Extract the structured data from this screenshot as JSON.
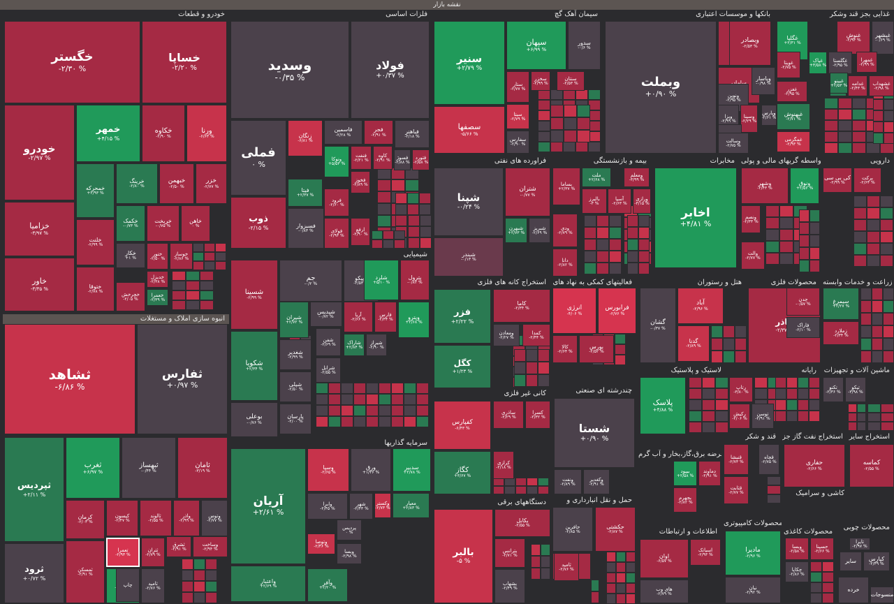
{
  "header": {
    "title": "نقشه بازار"
  },
  "colors": {
    "bg": "#2b2b2e",
    "neutral": "#4b414b",
    "red": "#c7334b",
    "dark_red": "#7e2a40",
    "green": "#209a5a"
  },
  "sectors": [
    {
      "name": "خودرو و قطعات"
    },
    {
      "name": "فلزات اساسی"
    },
    {
      "name": "سیمان آهک گچ"
    },
    {
      "name": "بانکها و موسسات اعتباری"
    },
    {
      "name": "غذایی بجز قند وشکر"
    },
    {
      "name": "انبوه سازی املاک و مستغلات"
    },
    {
      "name": "شیمیایی"
    },
    {
      "name": "فراورده های نفتی"
    },
    {
      "name": "بیمه و بازنشستگی"
    },
    {
      "name": "مخابرات"
    },
    {
      "name": "واسطه گریهای مالی و پولی"
    },
    {
      "name": "دارویی"
    },
    {
      "name": "استخراج کانه های فلزی"
    },
    {
      "name": "فعالیتهای کمکی به نهاد های"
    },
    {
      "name": "هتل و رستوران"
    },
    {
      "name": "محصولات فلزی"
    },
    {
      "name": "زراعت و خدمات وابسته"
    },
    {
      "name": "سرمایه گذاریها"
    },
    {
      "name": "کانی غیر فلزی"
    },
    {
      "name": "چندرشته ای صنعتی"
    },
    {
      "name": "لاستیک و پلاستیک"
    },
    {
      "name": "رایانه"
    },
    {
      "name": "ماشین آلات و تجهیزات"
    },
    {
      "name": "دستگاههای برقی"
    },
    {
      "name": "عرضه برق،گاز،بخار و آب گرم"
    },
    {
      "name": "قند و شکر"
    },
    {
      "name": "استخراج نفت گاز جز"
    },
    {
      "name": "استخراج سایر"
    },
    {
      "name": "حمل و نقل انبارداری و"
    },
    {
      "name": "اطلاعات و ارتباطات"
    },
    {
      "name": "محصولات کامپیوتری"
    },
    {
      "name": "کاشی و سرامیک"
    },
    {
      "name": "محصولات کاغذی"
    },
    {
      "name": "محصولات چوبی"
    }
  ],
  "tiles": [
    {
      "name": "خگستر",
      "change": "-۲/۳۰ %"
    },
    {
      "name": "خساپا",
      "change": "-۲/۲۰ %"
    },
    {
      "name": "خودرو",
      "change": "-۲/۹۷ %"
    },
    {
      "name": "خمهر",
      "change": "+۴/۱۵ %"
    },
    {
      "name": "خکاوه",
      "change": "-۲/۹۰ %"
    },
    {
      "name": "ورنا",
      "change": "-۶/۶۳ %"
    },
    {
      "name": "خزامیا",
      "change": "-۳/۹۷ %"
    },
    {
      "name": "خاور",
      "change": "-۳/۳۵ %"
    },
    {
      "name": "خمحرکه",
      "change": "+۲/۹۳ %"
    },
    {
      "name": "خبهمن",
      "change": "-۲/۵۰ %"
    },
    {
      "name": "خزر",
      "change": "-۲/۷۷ %"
    },
    {
      "name": "خرینگ",
      "change": "-۲/۸۰ %"
    },
    {
      "name": "خلنت",
      "change": "-۲/۹۹ %"
    },
    {
      "name": "خکمک",
      "change": "-۰/۷۳ %"
    },
    {
      "name": "خریخت",
      "change": "-۰/۷۵ %"
    },
    {
      "name": "خاهن",
      "change": "۰ %"
    },
    {
      "name": "خوساز",
      "change": "-۲/۸۶ %"
    },
    {
      "name": "ختور",
      "change": "-۲/۵۰ %"
    },
    {
      "name": "خکار",
      "change": "+۱ %"
    },
    {
      "name": "ختوقا",
      "change": "-۲/۷۸ %"
    },
    {
      "name": "خچرخش",
      "change": "-۲/۰۵ %"
    },
    {
      "name": "خدیزل",
      "change": "-۲/۳۸ %"
    },
    {
      "name": "خعمرا",
      "change": "-۲/۳۹ %"
    },
    {
      "name": "وسدید",
      "change": "-۰/۳۵ %"
    },
    {
      "name": "فولاد",
      "change": "+۰/۳۷ %"
    },
    {
      "name": "فملی",
      "change": "۰ %"
    },
    {
      "name": "ذوب",
      "change": "-۲/۱۵ %"
    },
    {
      "name": "زنگان",
      "change": "-۶/۸۱ %"
    },
    {
      "name": "فاسمین",
      "change": "-۲/۲۸ %"
    },
    {
      "name": "فجر",
      "change": "-۲/۹۱ %"
    },
    {
      "name": "فباهنر",
      "change": "-۲/۱۸ %"
    },
    {
      "name": "ونوکا",
      "change": "+۵/۵۳ %"
    },
    {
      "name": "فنفت",
      "change": "-۲/۲۱ %"
    },
    {
      "name": "کاوه",
      "change": "-۲/۹۱ %"
    },
    {
      "name": "فسوژ",
      "change": "-۲/۸۸ %"
    },
    {
      "name": "فتورد",
      "change": "-۲/۵۸ %"
    },
    {
      "name": "فیتا",
      "change": "+۲/۳۷ %"
    },
    {
      "name": "فرود",
      "change": "-۲/۶۰ %"
    },
    {
      "name": "فخوز",
      "change": "-۲/۸۹ %"
    },
    {
      "name": "فسبزوار",
      "change": "-۰/۸۳ %"
    },
    {
      "name": "فولای",
      "change": "-۲/۹۳ %"
    },
    {
      "name": "ارفع",
      "change": "-۲/۹۰ %"
    },
    {
      "name": "سنیر",
      "change": "+۲/۷۹ %"
    },
    {
      "name": "سپهان",
      "change": "+۶/۹۹ %"
    },
    {
      "name": "سدور",
      "change": "-۰/۶ %"
    },
    {
      "name": "سصفها",
      "change": "-۵/۶۶ %"
    },
    {
      "name": "ستار",
      "change": "-۲/۷۷ %"
    },
    {
      "name": "سخزر",
      "change": "-۲/۹۹ %"
    },
    {
      "name": "سنتان",
      "change": "-۲/۵۳ %"
    },
    {
      "name": "سیتا",
      "change": "-۲/۷۹ %"
    },
    {
      "name": "سفارس",
      "change": "-۲/۹۰ %"
    },
    {
      "name": "وبملت",
      "change": "+۰/۹۰ %"
    },
    {
      "name": "وتجارت",
      "change": "-۲/۶۳ %"
    },
    {
      "name": "وبصادر",
      "change": "-۲/۵۳ %"
    },
    {
      "name": "ساماں",
      "change": "-۲/۹۷ %"
    },
    {
      "name": "ونوین",
      "change": "-۲/۹۵ %"
    },
    {
      "name": "وپاسار",
      "change": "-۰/۹۸ %"
    },
    {
      "name": "ویزا",
      "change": "-۲/۹۹ %"
    },
    {
      "name": "وسینا",
      "change": "-۲/۲۹ %"
    },
    {
      "name": "وبیست",
      "change": "-۰/۸۵ %"
    },
    {
      "name": "وسالت",
      "change": "-۲/۷۵ %"
    },
    {
      "name": "وپارس",
      "change": "-۲/۶۱ %"
    },
    {
      "name": "غگلپا",
      "change": "+۲/۳۱ %"
    },
    {
      "name": "غنوش",
      "change": "-۲/۹۳ %"
    },
    {
      "name": "غبشهر",
      "change": "-۰/۶۹ %"
    },
    {
      "name": "غویتا",
      "change": "-۲/۷۵ %"
    },
    {
      "name": "غپاک",
      "change": "+۳/۵۸ %"
    },
    {
      "name": "غگلستا",
      "change": "-۲/۹۵ %"
    },
    {
      "name": "غبهنوش",
      "change": "-۲/۷۱ %"
    },
    {
      "name": "غشهد",
      "change": "-۲/۹۲ %"
    },
    {
      "name": "غغزر",
      "change": "-۲/۹۵ %"
    },
    {
      "name": "غدامه",
      "change": "-۲/۴۳ %"
    },
    {
      "name": "غبینو",
      "change": "+۲/۵۳ %"
    },
    {
      "name": "غشهداب",
      "change": "-۲/۹۸ %"
    },
    {
      "name": "غمهرا",
      "change": "-۲/۹۹ %"
    },
    {
      "name": "غمگرمی",
      "change": "-۲/۹۳ %"
    },
    {
      "name": "ثشاهد",
      "change": "-۶/۸۶ %"
    },
    {
      "name": "ثفارس",
      "change": "+۰/۹۷ %"
    },
    {
      "name": "ثپردیس",
      "change": "+۲/۱۱ %"
    },
    {
      "name": "ثغرب",
      "change": "+۶/۹۷ %"
    },
    {
      "name": "ثبهساز",
      "change": "-۰/۴۴ %"
    },
    {
      "name": "ثامان",
      "change": "-۳/۱۹ %"
    },
    {
      "name": "ثرود",
      "change": "+۰/۷۲ %"
    },
    {
      "name": "کرمان",
      "change": "-۲/۰۳ %"
    },
    {
      "name": "کیسون",
      "change": "-۲/۴۷ %"
    },
    {
      "name": "ثالوند",
      "change": "-۲/۵۵ %"
    },
    {
      "name": "واذر",
      "change": "-۲/۹۹ %"
    },
    {
      "name": "وتوس",
      "change": "-۲/۷۷ %"
    },
    {
      "name": "تعمرا",
      "change": "-۲/۹۳ %"
    },
    {
      "name": "ثتران",
      "change": "-۲/۷۹ %"
    },
    {
      "name": "ثمسکن",
      "change": "-۲/۹۱ %"
    },
    {
      "name": "ثاخت",
      "change": "+۲/۷۳ %"
    },
    {
      "name": "ثامید",
      "change": "-۲/۷۶ %"
    },
    {
      "name": "ثشرق",
      "change": "-۲/۹۱ %"
    },
    {
      "name": "وساخت",
      "change": "-۲/۹۴ %"
    },
    {
      "name": "شسینا",
      "change": "-۲/۹۹ %"
    },
    {
      "name": "جم",
      "change": "-۰/۲ %"
    },
    {
      "name": "تاپیکو",
      "change": "-۲/۵۳ %"
    },
    {
      "name": "شلرد",
      "change": "+۵/۱۰ %"
    },
    {
      "name": "پترول",
      "change": "-۰/۸۲ %"
    },
    {
      "name": "شیران",
      "change": "+۲/۷۲ %"
    },
    {
      "name": "شپدیس",
      "change": "-۰/۷۲ %"
    },
    {
      "name": "آریا",
      "change": "-۲/۶۶ %"
    },
    {
      "name": "فارس",
      "change": "-۲/۳۴ %"
    },
    {
      "name": "وپترو",
      "change": "+۲/۶۸ %"
    },
    {
      "name": "شکویا",
      "change": "+۲/۳۴ %"
    },
    {
      "name": "شفن",
      "change": "-۲/۶۹ %"
    },
    {
      "name": "شاراک",
      "change": "+۲/۸۴ %"
    },
    {
      "name": "شغدیر",
      "change": "-۲/۹۹ %"
    },
    {
      "name": "شپلی",
      "change": "-۲/۵۰ %"
    },
    {
      "name": "بوعلی",
      "change": "-۰/۷۶ %"
    },
    {
      "name": "پارسان",
      "change": "-۲/۰۰ %"
    },
    {
      "name": "شرانل",
      "change": "-۲/۵۵ %"
    },
    {
      "name": "شیراز",
      "change": "-۲/۹۰ %"
    },
    {
      "name": "شپنا",
      "change": "-۰/۲۴ %"
    },
    {
      "name": "شتران",
      "change": "-۰/۷۷ %"
    },
    {
      "name": "شبهرن",
      "change": "+۲/۷۳ %"
    },
    {
      "name": "شبریز",
      "change": "-۲/۶۹ %"
    },
    {
      "name": "شبندر",
      "change": "-۰/۱۳ %"
    },
    {
      "name": "بساما",
      "change": "+۲/۳۷ %"
    },
    {
      "name": "ملت",
      "change": "+۲/۶۸ %"
    },
    {
      "name": "ومعلم",
      "change": "-۳/۹۹ %"
    },
    {
      "name": "بالبرز",
      "change": "-۳ %"
    },
    {
      "name": "آسیا",
      "change": "-۲/۶۳ %"
    },
    {
      "name": "ورازی",
      "change": "-۳/۱۵ %"
    },
    {
      "name": "ودی",
      "change": "-۲/۷۹ %"
    },
    {
      "name": "دانا",
      "change": "-۲/۸۲ %"
    },
    {
      "name": "اخابر",
      "change": "+۴/۸۱ %"
    },
    {
      "name": "وشهر",
      "change": "-۲/۴۳ %"
    },
    {
      "name": "ونوق",
      "change": "+۲/۵۶ %"
    },
    {
      "name": "کی بی سی",
      "change": "-۲/۹۹ %"
    },
    {
      "name": "برکت",
      "change": "-۲/۶۴ %"
    },
    {
      "name": "ونصم",
      "change": "-۲/۳۳ %"
    },
    {
      "name": "والت",
      "change": "-۲/۷۷ %"
    },
    {
      "name": "فزر",
      "change": "+۲/۲۲ %"
    },
    {
      "name": "کاما",
      "change": "-۲/۳۴ %"
    },
    {
      "name": "ومعادن",
      "change": "-۲/۲۷ %"
    },
    {
      "name": "کمدا",
      "change": "-۲/۴۴ %"
    },
    {
      "name": "کگل",
      "change": "+۱/۲۳ %"
    },
    {
      "name": "انرژی",
      "change": "-۴/۰۶ %"
    },
    {
      "name": "فرابورس",
      "change": "-۲/۷۶ %"
    },
    {
      "name": "بورس",
      "change": "-۲/۵۲ %"
    },
    {
      "name": "کالا",
      "change": "-۲/۶۴ %"
    },
    {
      "name": "گشان",
      "change": "-۰/۳۷ %"
    },
    {
      "name": "آباد",
      "change": "-۲/۹۶ %"
    },
    {
      "name": "گدنا",
      "change": "-۲/۸۹ %"
    },
    {
      "name": "فاذر",
      "change": "-۲/۳۷ %"
    },
    {
      "name": "چدن",
      "change": "-۰/۵۷ %"
    },
    {
      "name": "فاراک",
      "change": "-۲/۱۰ %"
    },
    {
      "name": "سیمرغ",
      "change": "+۲/۲۷ %"
    },
    {
      "name": "زملارد",
      "change": "-۲/۳۴ %"
    },
    {
      "name": "آریان",
      "change": "+۲/۶۱ %"
    },
    {
      "name": "وسپا",
      "change": "-۲/۶۵ %"
    },
    {
      "name": "ورق",
      "change": "+۱/۳۶ %"
    },
    {
      "name": "سدبیر",
      "change": "+۲/۷۸ %"
    },
    {
      "name": "وکستر",
      "change": "-۲/۷۳ %"
    },
    {
      "name": "معیار",
      "change": "+۲/۸۳ %"
    },
    {
      "name": "وابرا",
      "change": "-۲/۴۵ %"
    },
    {
      "name": "شهر",
      "change": "-۲/۴۳ %"
    },
    {
      "name": "پردیس",
      "change": "۰ %"
    },
    {
      "name": "وتوصا",
      "change": "-۲/۴۶ %"
    },
    {
      "name": "وبسا",
      "change": "-۲/۹۸ %"
    },
    {
      "name": "وآفر",
      "change": "+۲/۲۰ %"
    },
    {
      "name": "واعتبار",
      "change": "+۲/۶۹ %"
    },
    {
      "name": "کفپارس",
      "change": "-۶/۴۳ %"
    },
    {
      "name": "ساذری",
      "change": "-۲/۲۹ %"
    },
    {
      "name": "کسرا",
      "change": "-۲/۳۲ %"
    },
    {
      "name": "کگاز",
      "change": "+۳/۶۷ %"
    },
    {
      "name": "کرازی",
      "change": "-۲/۱۸ %"
    },
    {
      "name": "شستا",
      "change": "+۰/۹۰ %"
    },
    {
      "name": "ونفت",
      "change": "-۲/۸۹ %"
    },
    {
      "name": "وکغدیر",
      "change": "-۲/۹۱ %"
    },
    {
      "name": "پلاسک",
      "change": "+۴/۸۸ %"
    },
    {
      "name": "رتاپ",
      "change": "-۳/۸۰ %"
    },
    {
      "name": "رکیش",
      "change": "-۲/۰۶ %"
    },
    {
      "name": "توسن",
      "change": "-۲/۹۱ %"
    },
    {
      "name": "تکنو",
      "change": "-۲/۳۶ %"
    },
    {
      "name": "تپکو",
      "change": "-۳/۹۸ %"
    },
    {
      "name": "بالبر",
      "change": "-۵ %"
    },
    {
      "name": "بکابل",
      "change": "-۲/۵۵ %"
    },
    {
      "name": "بترانس",
      "change": "-۲/۷۱ %"
    },
    {
      "name": "بشهاب",
      "change": "-۲/۴۹ %"
    },
    {
      "name": "بیپود",
      "change": "+۲/۵۸ %"
    },
    {
      "name": "دماوند",
      "change": "-۲/۹۱ %"
    },
    {
      "name": "بجهرم",
      "change": "-۲/۸۲ %"
    },
    {
      "name": "قثابت",
      "change": "-۲/۷۷ %"
    },
    {
      "name": "قنیشا",
      "change": "-۲/۷۳ %"
    },
    {
      "name": "قچاه",
      "change": "-۲/۷۵ %"
    },
    {
      "name": "حفاری",
      "change": "-۲/۶۶ %"
    },
    {
      "name": "کماسه",
      "change": "-۲/۵۵ %"
    },
    {
      "name": "حکشتی",
      "change": "-۲/۸۷ %"
    },
    {
      "name": "حافرین",
      "change": "-۲/۸۵ %"
    },
    {
      "name": "حپارس",
      "change": "-۲/۸۹ %"
    },
    {
      "name": "اوان",
      "change": "-۶/۵۷ %"
    },
    {
      "name": "اسیاتک",
      "change": "-۲/۹۳ %"
    },
    {
      "name": "های وب",
      "change": "-۲/۷۹ %"
    },
    {
      "name": "مادیرا",
      "change": "-۲/۹۶ %"
    },
    {
      "name": "نیان",
      "change": "-۲/۹۲ %"
    },
    {
      "name": "وبسا",
      "change": "-۲/۵۸ %"
    },
    {
      "name": "چکاپا",
      "change": "-۲/۸۶ %"
    },
    {
      "name": "کپارس",
      "change": "-۲/۴۹ %"
    },
    {
      "name": "سایر",
      "change": ""
    },
    {
      "name": "خرده",
      "change": ""
    },
    {
      "name": "منسوجات",
      "change": ""
    },
    {
      "name": "چاپ",
      "change": ""
    },
    {
      "name": "ثامید",
      "change": "-۲/۷۶ %"
    },
    {
      "name": "حسینا",
      "change": "-۲/۶۶ %"
    },
    {
      "name": "تایرا",
      "change": "-۲/۹۷ %"
    },
    {
      "name": "افرا",
      "change": "+۲/۱۷ %"
    }
  ]
}
